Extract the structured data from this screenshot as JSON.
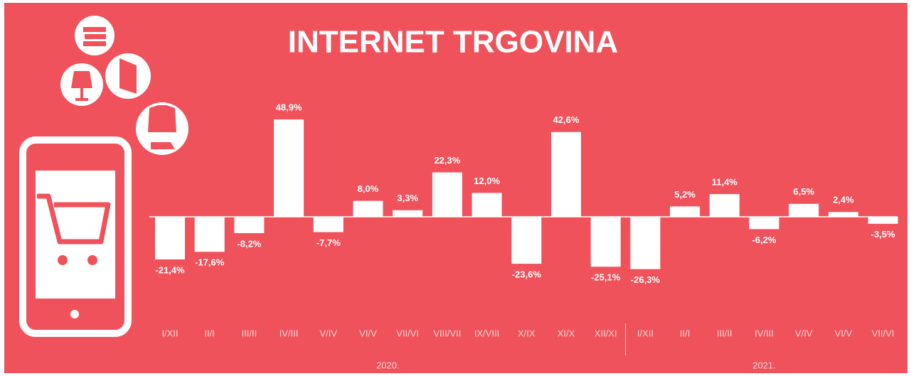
{
  "chart_data": {
    "type": "bar",
    "title": "INTERNET TRGOVINA",
    "color": "#ffffff",
    "groups": [
      {
        "label": "2020.",
        "categories": [
          "I/XII",
          "II/I",
          "III/II",
          "IV/III",
          "V/IV",
          "VI/V",
          "VII/VI",
          "VIII/VII",
          "IX/VIII",
          "X/IX",
          "XI/X",
          "XII/XI"
        ],
        "values": [
          -21.4,
          -17.6,
          -8.2,
          48.9,
          -7.7,
          8.0,
          3.3,
          22.3,
          12.0,
          -23.6,
          42.6,
          -25.1
        ],
        "value_labels": [
          "-21,4%",
          "-17,6%",
          "-8,2%",
          "48,9%",
          "-7,7%",
          "8,0%",
          "3,3%",
          "22,3%",
          "12,0%",
          "-23,6%",
          "42,6%",
          "-25,1%"
        ]
      },
      {
        "label": "2021.",
        "categories": [
          "I/XII",
          "II/I",
          "III/II",
          "IV/III",
          "V/IV",
          "VI/V",
          "VII/VI"
        ],
        "values": [
          -26.3,
          5.2,
          11.4,
          -6.2,
          6.5,
          2.4,
          -3.5
        ],
        "value_labels": [
          "-26,3%",
          "5,2%",
          "11,4%",
          "-6,2%",
          "6,5%",
          "2,4%",
          "-3,5%"
        ]
      }
    ]
  }
}
